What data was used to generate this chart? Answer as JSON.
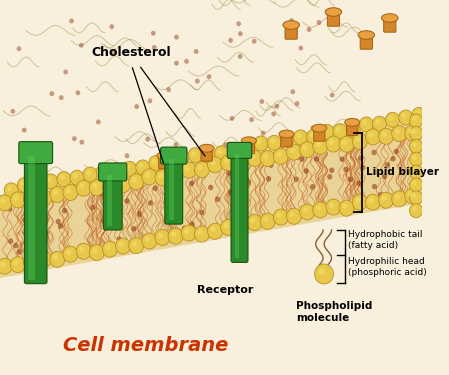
{
  "bg_top_color": "#f8f0dc",
  "bg_bot_color": "#e8d4a0",
  "head_color": "#e8c84a",
  "head_color2": "#d4b030",
  "head_edge": "#b89020",
  "tail_line_color": "#c06020",
  "chol_color": "#d4852a",
  "chol_top_color": "#e8a040",
  "chol_edge": "#a06010",
  "protein_color": "#2a8a2a",
  "protein_light": "#40aa40",
  "protein_dark": "#1a5a1a",
  "protein_edge": "#1a5010",
  "dot_color": "#8b3010",
  "title_color": "#cc3300",
  "label_color": "#000000",
  "title": "Cell membrane",
  "label_cholesterol": "Cholesterol",
  "label_receptor": "Receptor",
  "label_lipid": "Lipid bilayer",
  "label_hydrophobic": "Hydrophobic tail\n(fatty acid)",
  "label_hydrophilic": "Hydrophilic head\n(phosphoric acid)",
  "label_phospholipid": "Phospholipid\nmolecule",
  "figsize": [
    4.49,
    3.75
  ],
  "dpi": 100
}
